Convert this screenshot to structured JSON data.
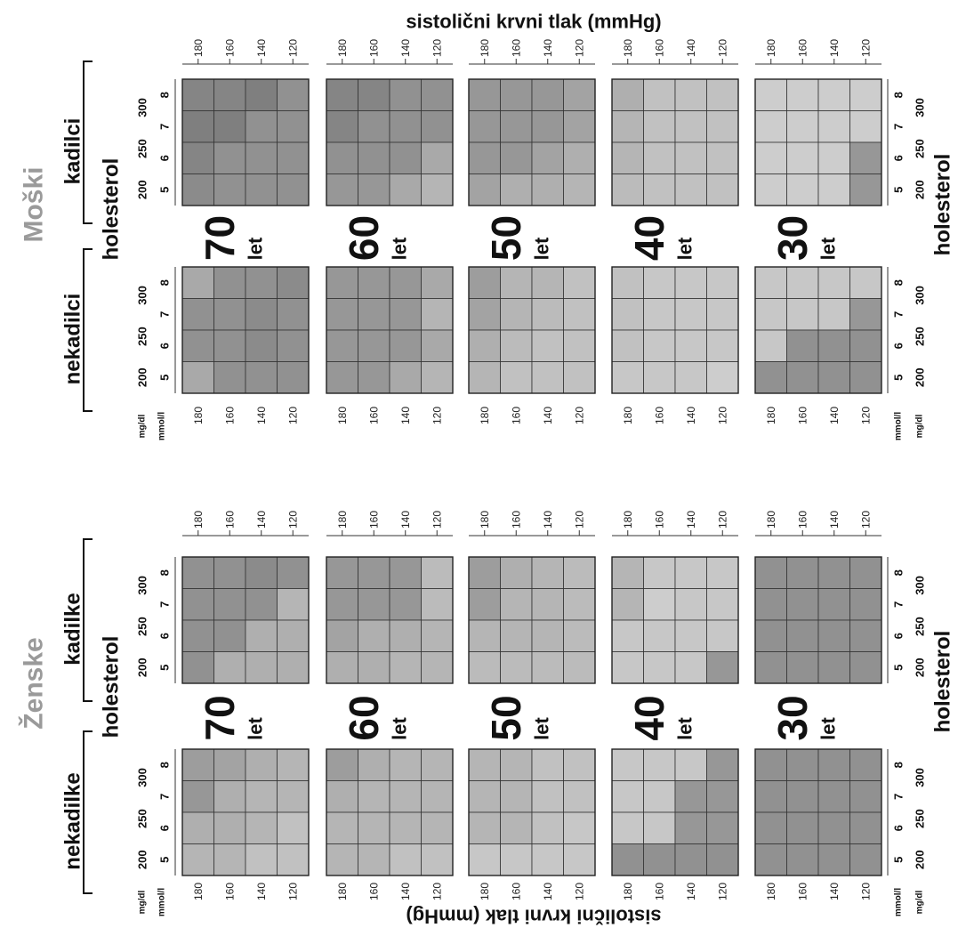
{
  "chart_data": {
    "type": "heatmap",
    "title": "sistolični krvni tlak (mmHg)",
    "bottom_title": "sistolični krvni tlak (mmHg)",
    "y_axis_label": "holesterol",
    "bp_ticks": [
      "180",
      "160",
      "140",
      "120"
    ],
    "chol_mmol_ticks": [
      "5",
      "6",
      "7",
      "8"
    ],
    "chol_mgdl_ticks": [
      "200",
      "250",
      "300"
    ],
    "unit_mgdl": "mg/dl",
    "unit_mmol": "mmol/l",
    "age_suffix": "let",
    "sexes": [
      {
        "name": "Moški",
        "groups": [
          "nekadilci",
          "kadilci"
        ],
        "rows": [
          {
            "age": "70",
            "nonsmoker": [
              [
                0.55,
                0.75,
                0.75,
                0.8
              ],
              [
                0.75,
                0.75,
                0.8,
                0.75
              ],
              [
                0.75,
                0.75,
                0.8,
                0.75
              ],
              [
                0.55,
                0.75,
                0.75,
                0.75
              ]
            ],
            "smoker": [
              [
                0.85,
                0.85,
                0.9,
                0.75
              ],
              [
                0.9,
                0.9,
                0.75,
                0.75
              ],
              [
                0.85,
                0.75,
                0.75,
                0.75
              ],
              [
                0.8,
                0.75,
                0.75,
                0.75
              ]
            ]
          },
          {
            "age": "60",
            "nonsmoker": [
              [
                0.7,
                0.7,
                0.7,
                0.55
              ],
              [
                0.7,
                0.7,
                0.7,
                0.45
              ],
              [
                0.7,
                0.7,
                0.7,
                0.55
              ],
              [
                0.7,
                0.7,
                0.55,
                0.45
              ]
            ],
            "smoker": [
              [
                0.85,
                0.85,
                0.75,
                0.75
              ],
              [
                0.85,
                0.75,
                0.75,
                0.75
              ],
              [
                0.75,
                0.75,
                0.75,
                0.55
              ],
              [
                0.7,
                0.7,
                0.55,
                0.45
              ]
            ]
          },
          {
            "age": "50",
            "nonsmoker": [
              [
                0.65,
                0.45,
                0.45,
                0.35
              ],
              [
                0.6,
                0.45,
                0.4,
                0.35
              ],
              [
                0.5,
                0.4,
                0.35,
                0.35
              ],
              [
                0.45,
                0.35,
                0.35,
                0.35
              ]
            ],
            "smoker": [
              [
                0.7,
                0.7,
                0.7,
                0.6
              ],
              [
                0.7,
                0.7,
                0.7,
                0.6
              ],
              [
                0.7,
                0.7,
                0.6,
                0.5
              ],
              [
                0.6,
                0.5,
                0.5,
                0.45
              ]
            ]
          },
          {
            "age": "40",
            "nonsmoker": [
              [
                0.35,
                0.3,
                0.3,
                0.3
              ],
              [
                0.35,
                0.3,
                0.3,
                0.3
              ],
              [
                0.35,
                0.3,
                0.3,
                0.3
              ],
              [
                0.3,
                0.3,
                0.3,
                0.25
              ]
            ],
            "smoker": [
              [
                0.5,
                0.35,
                0.35,
                0.35
              ],
              [
                0.45,
                0.35,
                0.35,
                0.35
              ],
              [
                0.45,
                0.35,
                0.35,
                0.35
              ],
              [
                0.4,
                0.35,
                0.35,
                0.35
              ]
            ]
          },
          {
            "age": "30",
            "nonsmoker": [
              [
                0.3,
                0.3,
                0.3,
                0.3
              ],
              [
                0.3,
                0.3,
                0.3,
                0.7
              ],
              [
                0.3,
                0.75,
                0.75,
                0.75
              ],
              [
                0.75,
                0.75,
                0.75,
                0.75
              ]
            ],
            "smoker": [
              [
                0.25,
                0.25,
                0.25,
                0.25
              ],
              [
                0.25,
                0.25,
                0.25,
                0.25
              ],
              [
                0.25,
                0.25,
                0.25,
                0.7
              ],
              [
                0.25,
                0.25,
                0.25,
                0.7
              ]
            ]
          }
        ]
      },
      {
        "name": "Ženske",
        "groups": [
          "nekadilke",
          "kadilke"
        ],
        "rows": [
          {
            "age": "70",
            "nonsmoker": [
              [
                0.65,
                0.6,
                0.5,
                0.45
              ],
              [
                0.7,
                0.5,
                0.45,
                0.45
              ],
              [
                0.5,
                0.5,
                0.45,
                0.35
              ],
              [
                0.45,
                0.45,
                0.35,
                0.35
              ]
            ],
            "smoker": [
              [
                0.75,
                0.75,
                0.8,
                0.75
              ],
              [
                0.75,
                0.75,
                0.75,
                0.45
              ],
              [
                0.75,
                0.75,
                0.5,
                0.5
              ],
              [
                0.75,
                0.5,
                0.5,
                0.5
              ]
            ]
          },
          {
            "age": "60",
            "nonsmoker": [
              [
                0.65,
                0.5,
                0.45,
                0.45
              ],
              [
                0.5,
                0.45,
                0.45,
                0.45
              ],
              [
                0.45,
                0.45,
                0.45,
                0.45
              ],
              [
                0.45,
                0.45,
                0.35,
                0.35
              ]
            ],
            "smoker": [
              [
                0.7,
                0.7,
                0.7,
                0.4
              ],
              [
                0.7,
                0.7,
                0.7,
                0.4
              ],
              [
                0.6,
                0.5,
                0.5,
                0.45
              ],
              [
                0.5,
                0.5,
                0.45,
                0.45
              ]
            ]
          },
          {
            "age": "50",
            "nonsmoker": [
              [
                0.45,
                0.45,
                0.35,
                0.35
              ],
              [
                0.45,
                0.45,
                0.35,
                0.35
              ],
              [
                0.45,
                0.45,
                0.35,
                0.3
              ],
              [
                0.3,
                0.3,
                0.3,
                0.3
              ]
            ],
            "smoker": [
              [
                0.65,
                0.5,
                0.45,
                0.4
              ],
              [
                0.65,
                0.45,
                0.45,
                0.4
              ],
              [
                0.45,
                0.45,
                0.45,
                0.4
              ],
              [
                0.4,
                0.4,
                0.4,
                0.4
              ]
            ]
          },
          {
            "age": "40",
            "nonsmoker": [
              [
                0.3,
                0.3,
                0.3,
                0.7
              ],
              [
                0.3,
                0.3,
                0.7,
                0.7
              ],
              [
                0.3,
                0.3,
                0.7,
                0.7
              ],
              [
                0.75,
                0.75,
                0.75,
                0.75
              ]
            ],
            "smoker": [
              [
                0.45,
                0.3,
                0.3,
                0.3
              ],
              [
                0.45,
                0.25,
                0.3,
                0.3
              ],
              [
                0.3,
                0.3,
                0.3,
                0.3
              ],
              [
                0.3,
                0.3,
                0.3,
                0.7
              ]
            ]
          },
          {
            "age": "30",
            "nonsmoker": [
              [
                0.75,
                0.75,
                0.75,
                0.75
              ],
              [
                0.75,
                0.75,
                0.75,
                0.75
              ],
              [
                0.75,
                0.75,
                0.75,
                0.75
              ],
              [
                0.75,
                0.75,
                0.75,
                0.75
              ]
            ],
            "smoker": [
              [
                0.75,
                0.75,
                0.75,
                0.75
              ],
              [
                0.75,
                0.75,
                0.75,
                0.75
              ],
              [
                0.75,
                0.75,
                0.75,
                0.75
              ],
              [
                0.75,
                0.75,
                0.75,
                0.75
              ]
            ]
          }
        ]
      }
    ]
  }
}
